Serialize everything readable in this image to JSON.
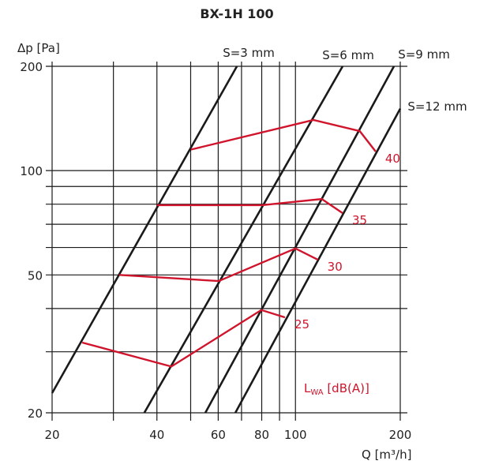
{
  "chart_data": {
    "type": "line",
    "title": "BX-1H 100",
    "xlabel": "Q [m³/h]",
    "ylabel": "Δp [Pa]",
    "xscale": "log",
    "yscale": "log",
    "xlim": [
      20,
      200
    ],
    "ylim": [
      20,
      200
    ],
    "xticks": [
      20,
      40,
      60,
      80,
      100,
      200
    ],
    "yticks": [
      20,
      50,
      100,
      200
    ],
    "xgrid": [
      20,
      30,
      40,
      50,
      60,
      70,
      80,
      90,
      100,
      200
    ],
    "ygrid": [
      20,
      30,
      40,
      50,
      60,
      70,
      80,
      90,
      100,
      200
    ],
    "grid": true,
    "damper_lines": [
      {
        "name": "S=3 mm",
        "points": [
          [
            20,
            22.8
          ],
          [
            67.9,
            200
          ]
        ]
      },
      {
        "name": "S=6 mm",
        "points": [
          [
            36.8,
            20
          ],
          [
            136.6,
            200
          ]
        ]
      },
      {
        "name": "S=9 mm",
        "points": [
          [
            55.1,
            20
          ],
          [
            191.8,
            200
          ]
        ]
      },
      {
        "name": "S=12 mm",
        "points": [
          [
            67.2,
            20
          ],
          [
            200,
            151
          ]
        ]
      }
    ],
    "noise_label": "LWA [dB(A)]",
    "noise_label_main": "L",
    "noise_label_sub": "WA",
    "noise_label_rest": " [dB(A)]",
    "noise_lines": [
      {
        "name": "40",
        "points": [
          [
            50.1,
            115
          ],
          [
            112.6,
            140
          ],
          [
            153,
            130
          ],
          [
            170,
            113.5
          ]
        ]
      },
      {
        "name": "35",
        "points": [
          [
            40,
            79.5
          ],
          [
            80.2,
            79.5
          ],
          [
            119,
            82.8
          ],
          [
            136.6,
            75.4
          ]
        ]
      },
      {
        "name": "30",
        "points": [
          [
            31.2,
            50
          ],
          [
            60.2,
            48
          ],
          [
            100,
            59.6
          ],
          [
            116,
            55.3
          ]
        ]
      },
      {
        "name": "25",
        "points": [
          [
            24.4,
            31.9
          ],
          [
            44,
            27.2
          ],
          [
            79.8,
            39.6
          ],
          [
            93.3,
            37.7
          ]
        ]
      }
    ],
    "colors": {
      "damper": "#1a1a1a",
      "noise": "#d0142c",
      "grid": "#1a1a1a"
    }
  }
}
